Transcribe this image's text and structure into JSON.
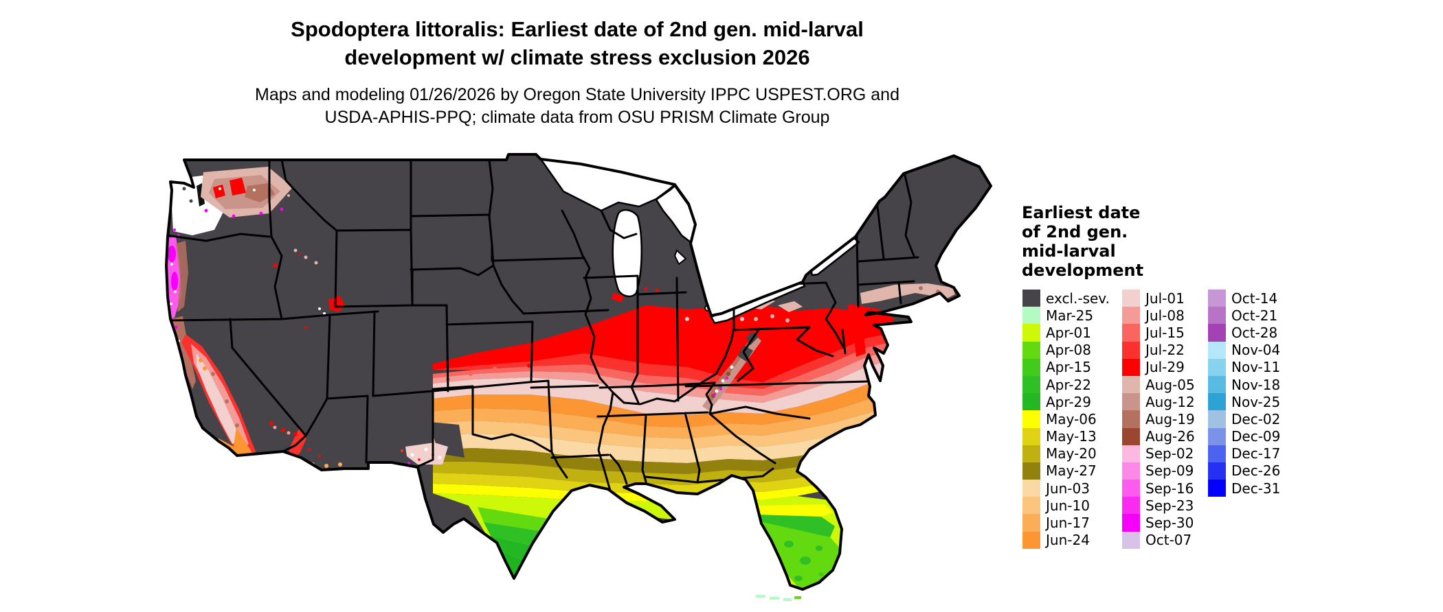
{
  "header": {
    "title_line1": "Spodoptera littoralis: Earliest date of 2nd gen. mid-larval",
    "title_line2": "development w/ climate stress exclusion 2026",
    "subtitle_line1": "Maps and modeling 01/26/2026 by Oregon State University IPPC USPEST.ORG and",
    "subtitle_line2": "USDA-APHIS-PPQ; climate data from OSU PRISM Climate Group"
  },
  "legend": {
    "title_line1": "Earliest date",
    "title_line2": "of 2nd gen.",
    "title_line3": "mid-larval",
    "title_line4": "development",
    "columns": [
      [
        {
          "label": "excl.-sev.",
          "color": "#474449"
        },
        {
          "label": "Mar-25",
          "color": "#B4FBC3"
        },
        {
          "label": "Apr-01",
          "color": "#CDF807"
        },
        {
          "label": "Apr-08",
          "color": "#63DA0F"
        },
        {
          "label": "Apr-15",
          "color": "#41CC1C"
        },
        {
          "label": "Apr-22",
          "color": "#2FC026"
        },
        {
          "label": "Apr-29",
          "color": "#23B723"
        },
        {
          "label": "May-06",
          "color": "#FDFF00"
        },
        {
          "label": "May-13",
          "color": "#E0D313"
        },
        {
          "label": "May-20",
          "color": "#C0B010"
        },
        {
          "label": "May-27",
          "color": "#93810E"
        },
        {
          "label": "Jun-03",
          "color": "#FBD9A4"
        },
        {
          "label": "Jun-10",
          "color": "#FCC57E"
        },
        {
          "label": "Jun-17",
          "color": "#FCAE57"
        },
        {
          "label": "Jun-24",
          "color": "#FB9632"
        }
      ],
      [
        {
          "label": "Jul-01",
          "color": "#F2D0CE"
        },
        {
          "label": "Jul-08",
          "color": "#F49B97"
        },
        {
          "label": "Jul-15",
          "color": "#F9665F"
        },
        {
          "label": "Jul-22",
          "color": "#FB312E"
        },
        {
          "label": "Jul-29",
          "color": "#FE0000"
        },
        {
          "label": "Aug-05",
          "color": "#E0B6AC"
        },
        {
          "label": "Aug-12",
          "color": "#C9958A"
        },
        {
          "label": "Aug-19",
          "color": "#B4715F"
        },
        {
          "label": "Aug-26",
          "color": "#9A4631"
        },
        {
          "label": "Sep-02",
          "color": "#FCB9DF"
        },
        {
          "label": "Sep-09",
          "color": "#FC88E8"
        },
        {
          "label": "Sep-16",
          "color": "#FC5BEE"
        },
        {
          "label": "Sep-23",
          "color": "#FA2BF0"
        },
        {
          "label": "Sep-30",
          "color": "#F700FB"
        },
        {
          "label": "Oct-07",
          "color": "#D9C2E7"
        }
      ],
      [
        {
          "label": "Oct-14",
          "color": "#C796D7"
        },
        {
          "label": "Oct-21",
          "color": "#B973C6"
        },
        {
          "label": "Oct-28",
          "color": "#A341B5"
        },
        {
          "label": "Nov-04",
          "color": "#B5E7FB"
        },
        {
          "label": "Nov-11",
          "color": "#87D2EE"
        },
        {
          "label": "Nov-18",
          "color": "#57BBE2"
        },
        {
          "label": "Nov-25",
          "color": "#2DA3D5"
        },
        {
          "label": "Dec-02",
          "color": "#9FC2E2"
        },
        {
          "label": "Dec-09",
          "color": "#7A92E8"
        },
        {
          "label": "Dec-17",
          "color": "#4C62F0"
        },
        {
          "label": "Dec-26",
          "color": "#2430F2"
        },
        {
          "label": "Dec-31",
          "color": "#0400FE"
        }
      ]
    ]
  }
}
